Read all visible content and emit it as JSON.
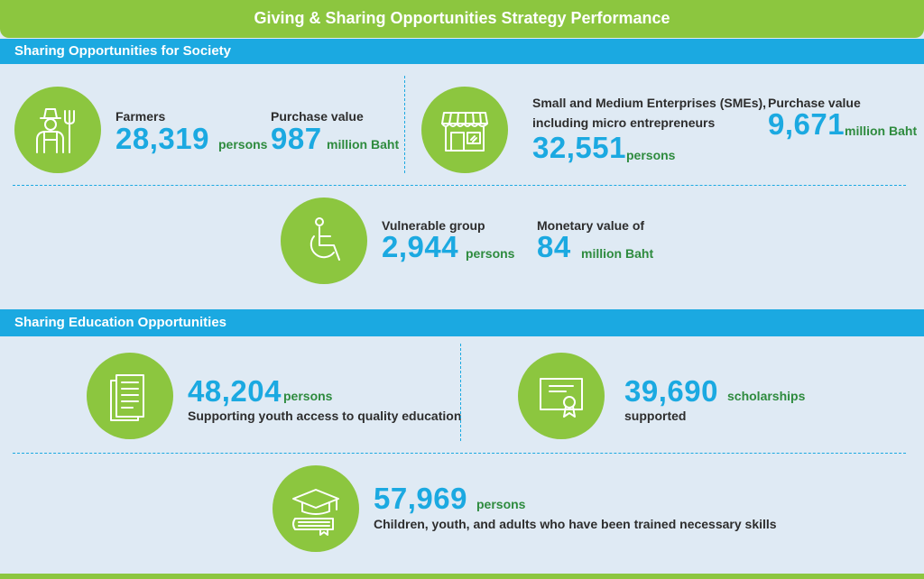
{
  "title": "Giving & Sharing Opportunities Strategy Performance",
  "sections": {
    "society": "Sharing Opportunities for Society",
    "education": "Sharing Education Opportunities"
  },
  "farmers": {
    "label": "Farmers",
    "value": "28,319",
    "unit": "persons",
    "purchase_label": "Purchase value",
    "purchase_value": "987",
    "purchase_unit": "million Baht",
    "icon": "farmer-icon"
  },
  "smes": {
    "label_line1": "Small and Medium Enterprises (SMEs),",
    "label_line2": "including micro entrepreneurs",
    "value": "32,551",
    "unit": "persons",
    "purchase_label": "Purchase value",
    "purchase_value": "9,671",
    "purchase_unit": "million Baht",
    "icon": "shop-icon"
  },
  "vulnerable": {
    "label": "Vulnerable group",
    "value": "2,944",
    "unit": "persons",
    "monetary_label": "Monetary value of",
    "monetary_value": "84",
    "monetary_unit": "million Baht",
    "icon": "wheelchair-icon"
  },
  "youth": {
    "value": "48,204",
    "unit": "persons",
    "desc": "Supporting youth access to quality education",
    "icon": "document-icon"
  },
  "scholarships": {
    "value": "39,690",
    "unit": "scholarships",
    "desc": "supported",
    "icon": "certificate-icon"
  },
  "trained": {
    "value": "57,969",
    "unit": "persons",
    "desc": "Children, youth, and adults who have been trained necessary skills",
    "icon": "graduation-cap-icon"
  },
  "colors": {
    "green": "#8cc63f",
    "blue": "#1ba9e1",
    "background": "#dfeaf4",
    "unit_green": "#2e8b3e"
  }
}
